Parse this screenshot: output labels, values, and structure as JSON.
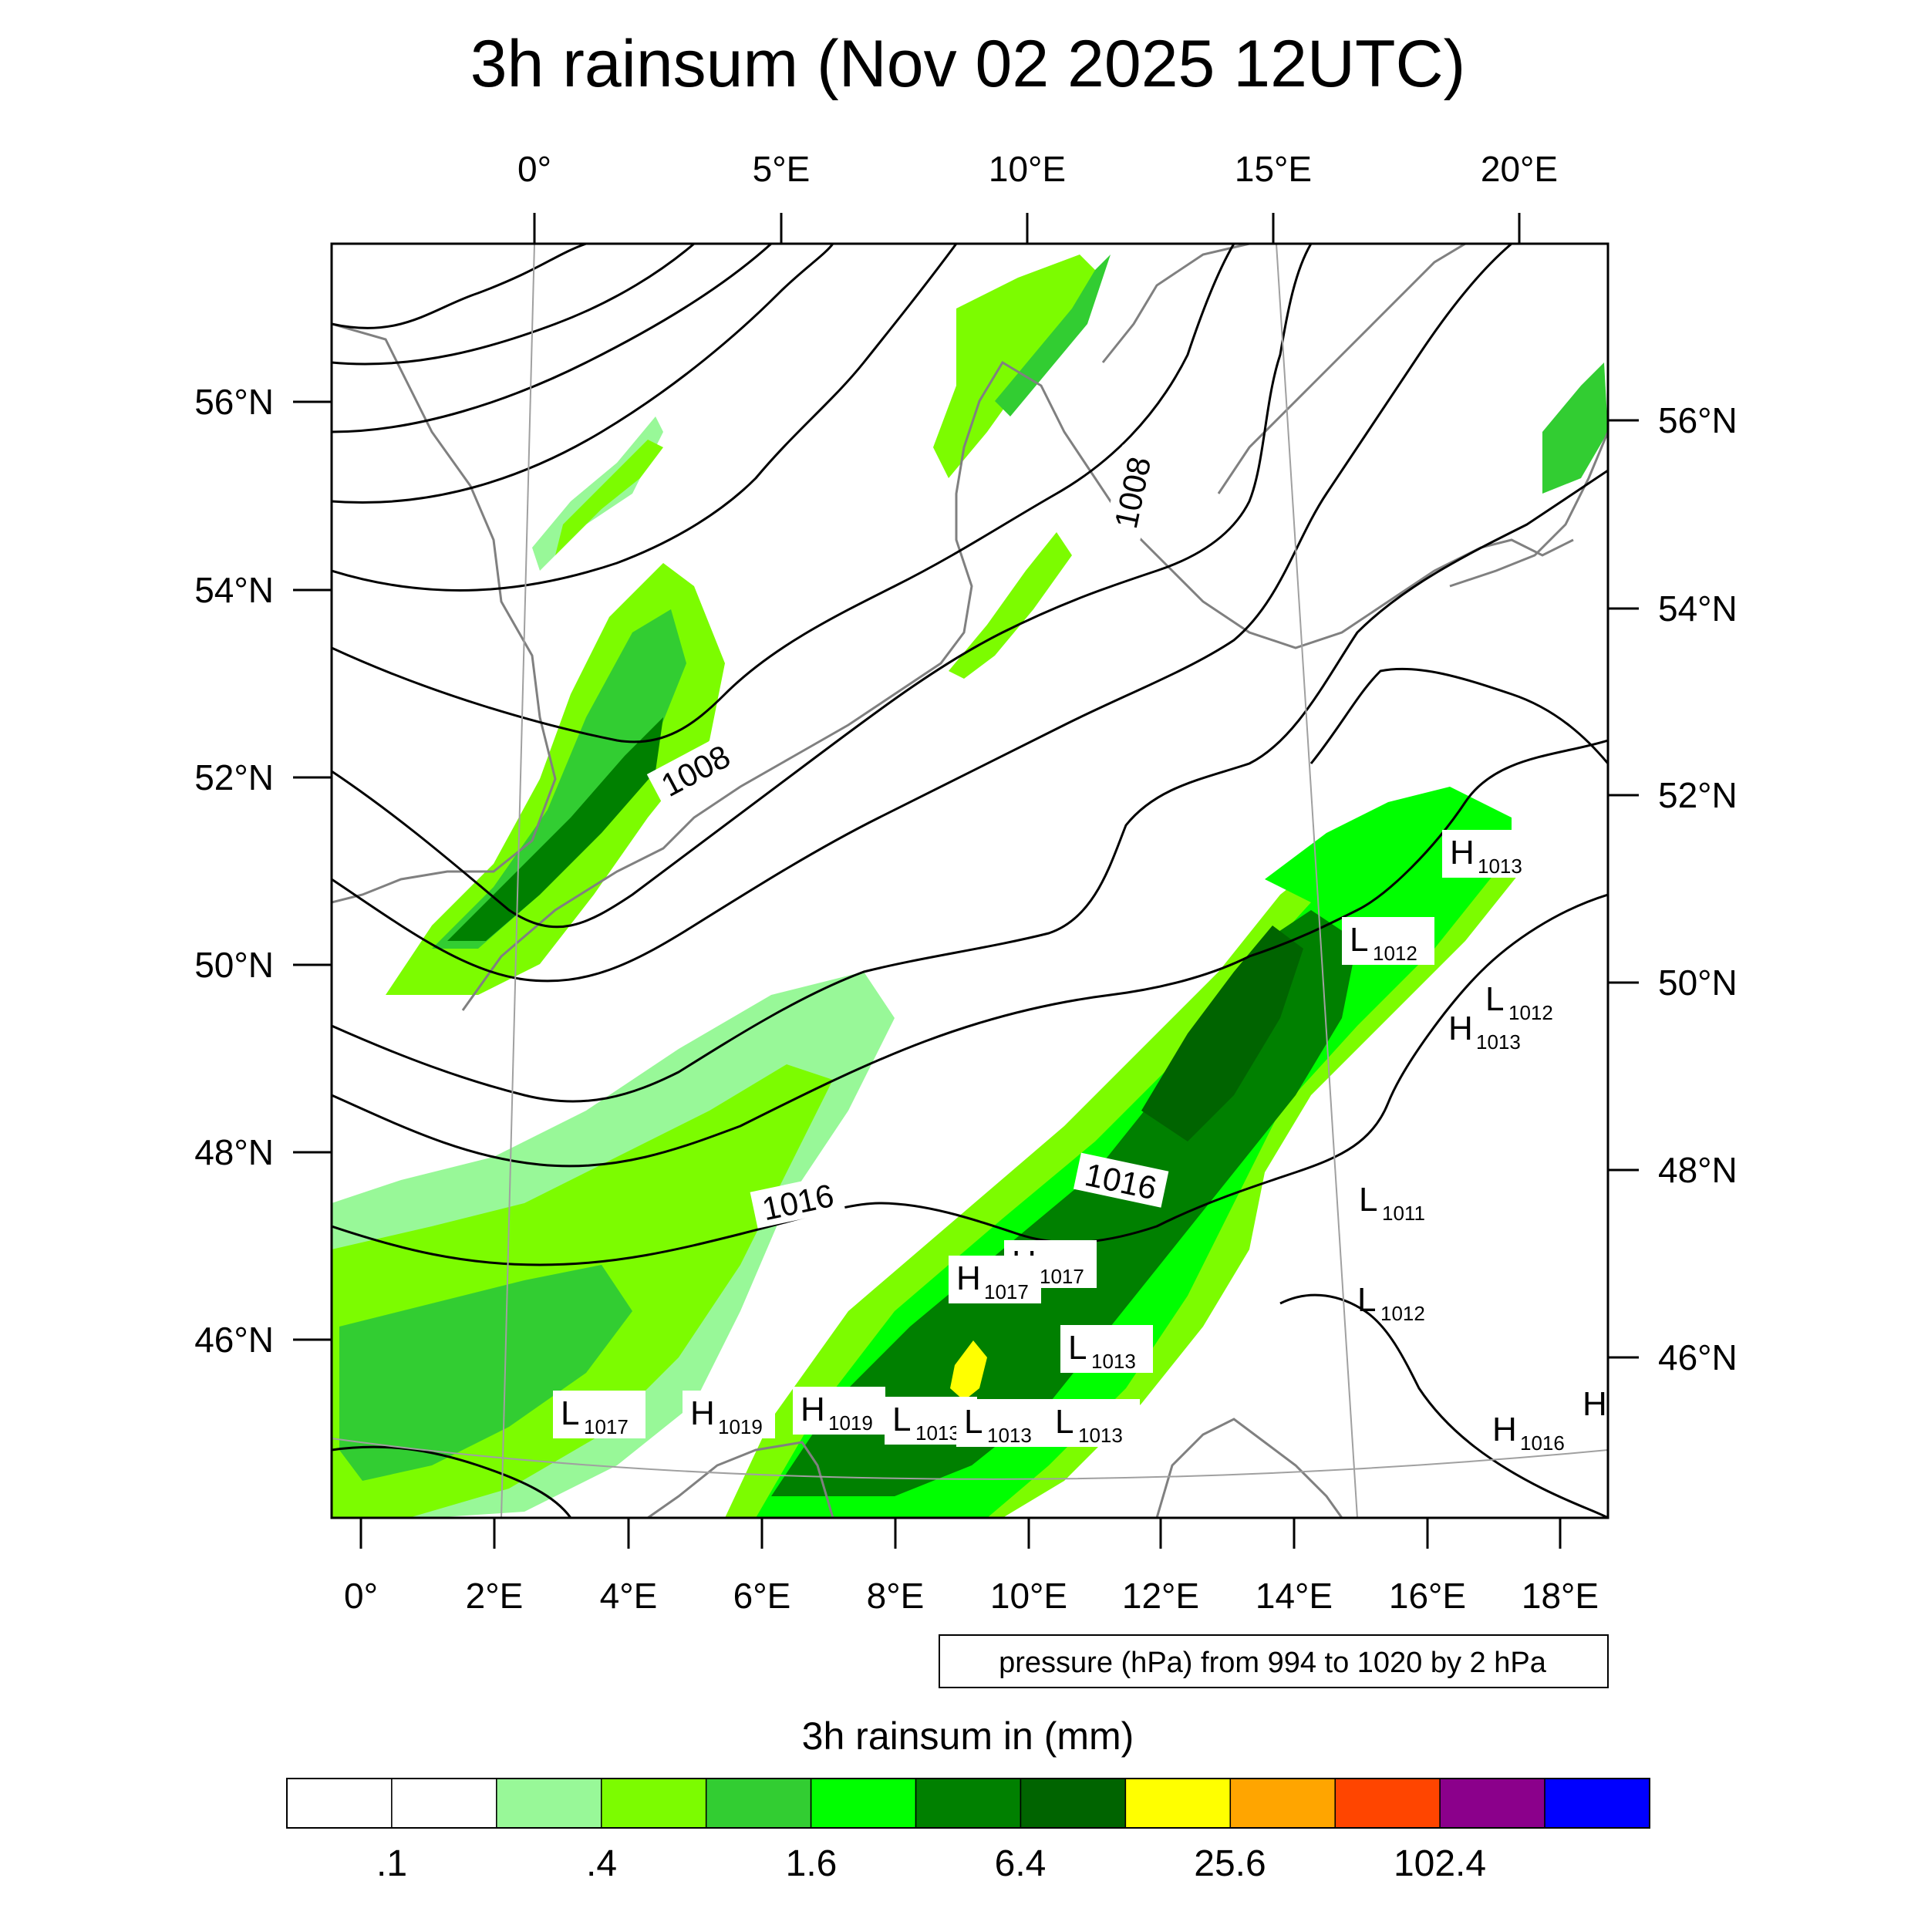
{
  "title": "3h rainsum (Nov 02 2025 12UTC)",
  "top_lon_labels": [
    "0°",
    "5°E",
    "10°E",
    "15°E",
    "20°E"
  ],
  "bottom_lon_labels": [
    "0°",
    "2°E",
    "4°E",
    "6°E",
    "8°E",
    "10°E",
    "12°E",
    "14°E",
    "16°E",
    "18°E"
  ],
  "left_lat_labels": [
    "56°N",
    "54°N",
    "52°N",
    "50°N",
    "48°N",
    "46°N"
  ],
  "right_lat_labels": [
    "56°N",
    "54°N",
    "52°N",
    "50°N",
    "48°N",
    "46°N"
  ],
  "contour_labels": [
    "1008",
    "1008",
    "1016",
    "1016"
  ],
  "pressure_centers": [
    {
      "letter": "H",
      "value": "1013"
    },
    {
      "letter": "L",
      "value": "1012"
    },
    {
      "letter": "L",
      "value": "1012"
    },
    {
      "letter": "H",
      "value": "1013"
    },
    {
      "letter": "L",
      "value": "1011"
    },
    {
      "letter": "L",
      "value": "1012"
    },
    {
      "letter": "H",
      "value": "1017"
    },
    {
      "letter": "H",
      "value": "1017"
    },
    {
      "letter": "L",
      "value": "1013"
    },
    {
      "letter": "L",
      "value": "1017"
    },
    {
      "letter": "H",
      "value": "1019"
    },
    {
      "letter": "H",
      "value": "1019"
    },
    {
      "letter": "L",
      "value": "1013"
    },
    {
      "letter": "L",
      "value": "1013"
    },
    {
      "letter": "L",
      "value": "1013"
    },
    {
      "letter": "H",
      "value": "1016"
    },
    {
      "letter": "H",
      "value": ""
    }
  ],
  "info_box": "pressure (hPa) from 994 to 1020 by 2 hPa",
  "colorbar": {
    "title": "3h rainsum in (mm)",
    "tick_labels": [
      ".1",
      ".4",
      "1.6",
      "6.4",
      "25.6",
      "102.4"
    ],
    "colors": [
      "#ffffff",
      "#ffffff",
      "#98f898",
      "#7cfc00",
      "#32cd32",
      "#00ff00",
      "#008000",
      "#006400",
      "#ffff00",
      "#ffa500",
      "#ff4500",
      "#8b008b",
      "#0000ff"
    ]
  },
  "colors": {
    "rain_light": "#98f898",
    "rain_lawn": "#7cfc00",
    "rain_lime": "#32cd32",
    "rain_green": "#00ff00",
    "rain_mid": "#008000",
    "rain_dark": "#006400",
    "rain_yellow": "#ffff00",
    "coast": "#808080",
    "isobar": "#000000"
  }
}
